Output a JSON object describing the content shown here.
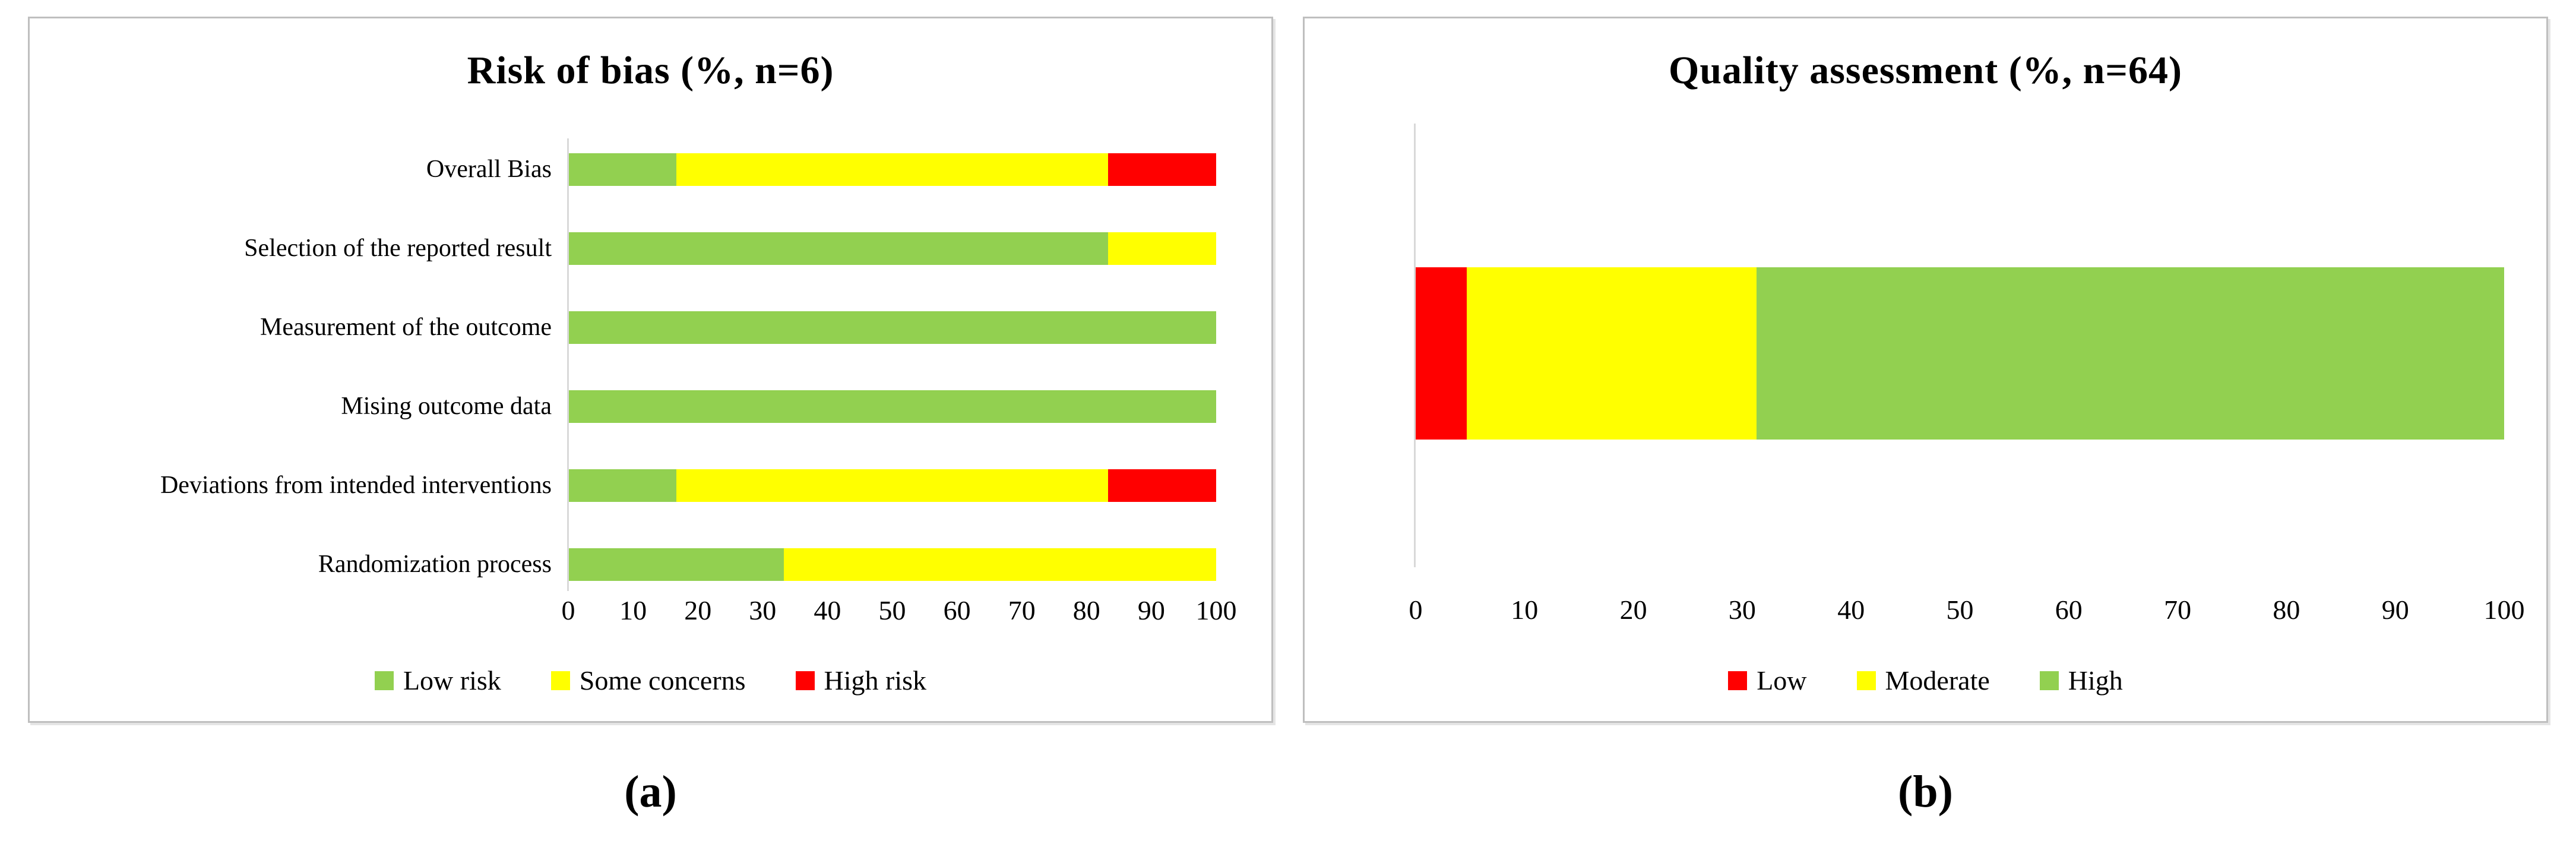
{
  "colors": {
    "low_risk_green": "#92D050",
    "concern_yellow": "#FFFF00",
    "high_risk_red": "#FF0000",
    "axis_line_gray": "#D9D9D9",
    "panel_border_gray": "#BFBFBF",
    "text_black": "#000000"
  },
  "captions": {
    "a": "(a)",
    "b": "(b)"
  },
  "chart_data": [
    {
      "type": "bar",
      "orientation": "horizontal",
      "stacked": true,
      "title": "Risk of bias (%, n=6)",
      "caption": "(a)",
      "categories": [
        "Overall Bias",
        "Selection of the reported result",
        "Measurement of the outcome",
        "Mising outcome data",
        "Deviations from intended interventions",
        "Randomization process"
      ],
      "series": [
        {
          "name": "Low risk",
          "color": "#92D050",
          "values": [
            16.7,
            83.3,
            100,
            100,
            16.7,
            33.3
          ]
        },
        {
          "name": "Some concerns",
          "color": "#FFFF00",
          "values": [
            66.6,
            16.7,
            0,
            0,
            66.6,
            66.7
          ]
        },
        {
          "name": "High risk",
          "color": "#FF0000",
          "values": [
            16.7,
            0,
            0,
            0,
            16.7,
            0
          ]
        }
      ],
      "xlim": [
        0,
        100
      ],
      "xticks": [
        0,
        10,
        20,
        30,
        40,
        50,
        60,
        70,
        80,
        90,
        100
      ],
      "grid": false,
      "legend_position": "bottom"
    },
    {
      "type": "bar",
      "orientation": "horizontal",
      "stacked": true,
      "title": "Quality assessment (%, n=64)",
      "caption": "(b)",
      "categories": [
        ""
      ],
      "series": [
        {
          "name": "Low",
          "color": "#FF0000",
          "values": [
            4.7
          ]
        },
        {
          "name": "Moderate",
          "color": "#FFFF00",
          "values": [
            26.6
          ]
        },
        {
          "name": "High",
          "color": "#92D050",
          "values": [
            68.7
          ]
        }
      ],
      "xlim": [
        0,
        100
      ],
      "xticks": [
        0,
        10,
        20,
        30,
        40,
        50,
        60,
        70,
        80,
        90,
        100
      ],
      "grid": false,
      "legend_position": "bottom"
    }
  ]
}
